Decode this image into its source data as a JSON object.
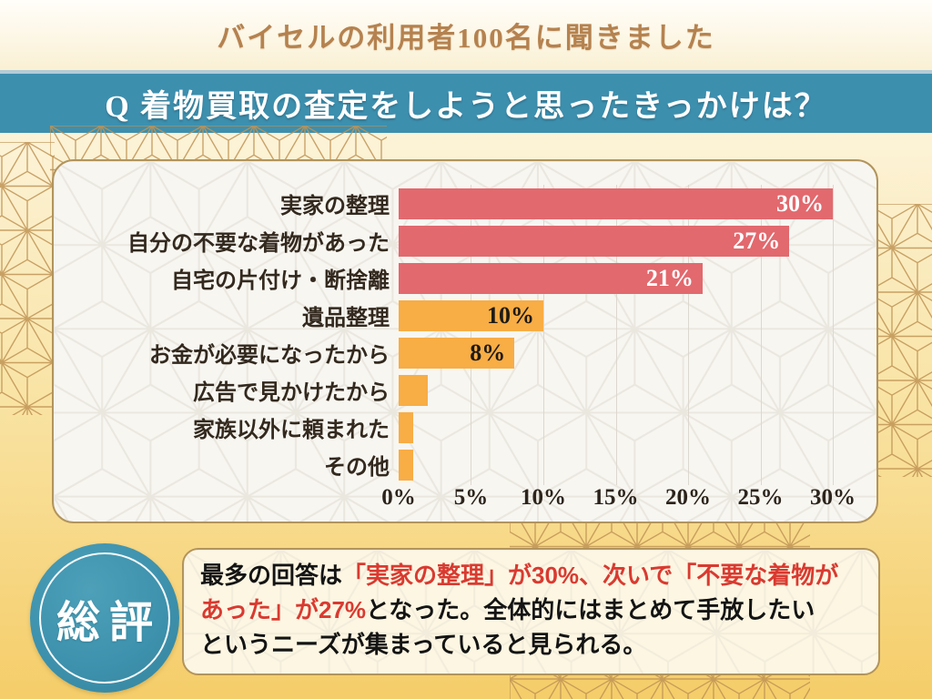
{
  "header": {
    "title": "バイセルの利用者100名に聞きました"
  },
  "question": {
    "label": "Q 着物買取の査定をしようと思ったきっかけは？"
  },
  "chart_data": {
    "type": "bar",
    "orientation": "horizontal",
    "categories": [
      "実家の整理",
      "自分の不要な着物があった",
      "自宅の片付け・断捨離",
      "遺品整理",
      "お金が必要になったから",
      "広告で見かけたから",
      "家族以外に頼まれた",
      "その他"
    ],
    "values": [
      30,
      27,
      21,
      10,
      8,
      2,
      1,
      1
    ],
    "value_labels": [
      "30%",
      "27%",
      "21%",
      "10%",
      "8%",
      "",
      "",
      ""
    ],
    "value_label_styles": [
      "light",
      "light",
      "light",
      "dark",
      "dark",
      "",
      "",
      ""
    ],
    "bar_colors": [
      "#e2696e",
      "#e2696e",
      "#e2696e",
      "#f8ad45",
      "#f8ad45",
      "#f8ad45",
      "#f8ad45",
      "#f8ad45"
    ],
    "xlim": [
      0,
      30
    ],
    "x_ticks": [
      "0%",
      "5%",
      "10%",
      "15%",
      "20%",
      "25%",
      "30%"
    ],
    "x_tick_values": [
      0,
      5,
      10,
      15,
      20,
      25,
      30
    ],
    "grid_positions": [
      5,
      10,
      15,
      20,
      25,
      30
    ],
    "grid": true,
    "legend": "none",
    "title": ""
  },
  "summary": {
    "badge": "総評",
    "lines": [
      {
        "segments": [
          {
            "text": "最多の回答は",
            "color": "black"
          },
          {
            "text": "「実家の整理」が30%、次いで「不要な着物が",
            "color": "red"
          }
        ]
      },
      {
        "segments": [
          {
            "text": "あった」が27%",
            "color": "red"
          },
          {
            "text": "となった。全体的にはまとめて手放したい",
            "color": "black"
          }
        ]
      },
      {
        "segments": [
          {
            "text": "というニーズが集まっていると見られる。",
            "color": "black"
          }
        ]
      }
    ]
  },
  "colors": {
    "accent_teal": "#3d8fae",
    "title_brown": "#b5824f",
    "bar_red": "#e2696e",
    "bar_orange": "#f8ad45",
    "text_red": "#d93a30",
    "gold_border": "#b2945c",
    "background_gold": "#f5cd69",
    "panel_bg": "#f8f6f1",
    "summary_bg": "#fdf6e2"
  }
}
